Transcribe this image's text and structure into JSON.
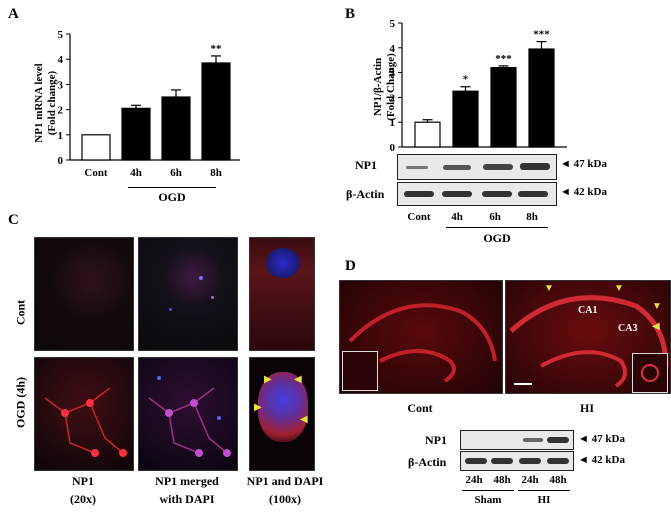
{
  "panels": {
    "A": {
      "letter": "A",
      "ylabel_line1": "NP1 mRNA level",
      "ylabel_line2": "(Fold change)",
      "group_label": "OGD",
      "sig": [
        "",
        "",
        "",
        "**"
      ]
    },
    "B": {
      "letter": "B",
      "ylabel_line1": "NP1/β-Actin",
      "ylabel_line2": "(Fold Change)",
      "group_label": "OGD",
      "sig": [
        "",
        "*",
        "***",
        "***"
      ],
      "blot_rows": [
        "NP1",
        "β-Actin"
      ],
      "sizes": [
        "47 kDa",
        "42 kDa"
      ],
      "lanes": [
        "Cont",
        "4h",
        "6h",
        "8h"
      ]
    },
    "C": {
      "letter": "C",
      "row_labels": [
        "Cont",
        "OGD (4h)"
      ],
      "col1": [
        "NP1",
        "(20x)"
      ],
      "col2": [
        "NP1 merged",
        "with DAPI"
      ],
      "col3": [
        "NP1 and DAPI",
        "(100x)"
      ]
    },
    "D": {
      "letter": "D",
      "image_labels": [
        "Cont",
        "HI"
      ],
      "regions": [
        "CA1",
        "CA3"
      ],
      "blot_rows": [
        "NP1",
        "β-Actin"
      ],
      "sizes": [
        "47 kDa",
        "42 kDa"
      ],
      "lanes": [
        "24h",
        "48h",
        "24h",
        "48h"
      ],
      "groups": [
        "Sham",
        "HI"
      ]
    }
  },
  "chart_data": [
    {
      "type": "bar",
      "panel": "A",
      "categories": [
        "Cont",
        "4h",
        "6h",
        "8h"
      ],
      "values": [
        1.0,
        2.05,
        2.5,
        3.85
      ],
      "errors": [
        0.0,
        0.12,
        0.28,
        0.28
      ],
      "ylabel": "NP1 mRNA level (Fold change)",
      "ylim": [
        0,
        5
      ],
      "yticks": [
        0,
        1,
        2,
        3,
        4,
        5
      ],
      "fills": [
        "#ffffff",
        "#000000",
        "#000000",
        "#000000"
      ]
    },
    {
      "type": "bar",
      "panel": "B",
      "categories": [
        "Cont",
        "4h",
        "6h",
        "8h"
      ],
      "values": [
        1.0,
        2.25,
        3.2,
        3.95
      ],
      "errors": [
        0.1,
        0.18,
        0.07,
        0.3
      ],
      "ylabel": "NP1/β-Actin (Fold Change)",
      "ylim": [
        0,
        5
      ],
      "yticks": [
        0,
        1,
        2,
        3,
        4,
        5
      ],
      "fills": [
        "#ffffff",
        "#000000",
        "#000000",
        "#000000"
      ]
    }
  ]
}
